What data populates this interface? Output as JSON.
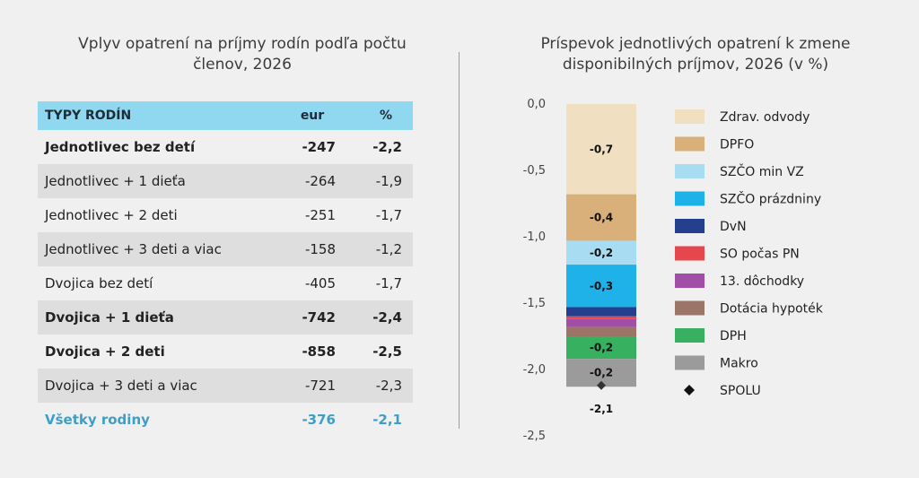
{
  "left_title": "Vplyv opatrení na príjmy rodín podľa počtu členov, 2026",
  "right_title": "Príspevok jednotlivých opatrení k zmene disponibilných príjmov, 2026 (v %)",
  "table": {
    "headers": [
      "TYPY RODÍN",
      "eur",
      "%"
    ],
    "rows": [
      {
        "label": "Jednotlivec bez detí",
        "eur": "-247",
        "pct": "-2,2",
        "bold": true
      },
      {
        "label": "Jednotlivec + 1 dieťa",
        "eur": "-264",
        "pct": "-1,9",
        "bold": false
      },
      {
        "label": "Jednotlivec + 2 deti",
        "eur": "-251",
        "pct": "-1,7",
        "bold": false
      },
      {
        "label": "Jednotlivec + 3 deti a viac",
        "eur": "-158",
        "pct": "-1,2",
        "bold": false
      },
      {
        "label": "Dvojica bez detí",
        "eur": "-405",
        "pct": "-1,7",
        "bold": false
      },
      {
        "label": "Dvojica + 1 dieťa",
        "eur": "-742",
        "pct": "-2,4",
        "bold": true
      },
      {
        "label": "Dvojica + 2 deti",
        "eur": "-858",
        "pct": "-2,5",
        "bold": true
      },
      {
        "label": "Dvojica + 3 deti a viac",
        "eur": "-721",
        "pct": "-2,3",
        "bold": false
      }
    ],
    "total": {
      "label": "Všetky rodiny",
      "eur": "-376",
      "pct": "-2,1"
    }
  },
  "chart_data": {
    "type": "bar",
    "stacked": true,
    "title": "Príspevok jednotlivých opatrení k zmene disponibilných príjmov, 2026 (v %)",
    "ylim": [
      -2.5,
      0
    ],
    "yticks": [
      "0,0",
      "-0,5",
      "-1,0",
      "-1,5",
      "-2,0",
      "-2,5"
    ],
    "ytick_values": [
      0,
      -0.5,
      -1.0,
      -1.5,
      -2.0,
      -2.5
    ],
    "series": [
      {
        "name": "Zdrav. odvody",
        "value": -0.68,
        "label": "-0,7",
        "color": "#f1dfc2"
      },
      {
        "name": "DPFO",
        "value": -0.35,
        "label": "-0,4",
        "color": "#d9b07a"
      },
      {
        "name": "SZČO min VZ",
        "value": -0.18,
        "label": "-0,2",
        "color": "#a8dcf2"
      },
      {
        "name": "SZČO prázdniny",
        "value": -0.32,
        "label": "-0,3",
        "color": "#1eb2e8"
      },
      {
        "name": "DvN",
        "value": -0.07,
        "label": "",
        "color": "#233f8e"
      },
      {
        "name": "SO počas PN",
        "value": -0.02,
        "label": "",
        "color": "#e5474d"
      },
      {
        "name": "13. dôchodky",
        "value": -0.06,
        "label": "",
        "color": "#a04ea6"
      },
      {
        "name": "Dotácia hypoték",
        "value": -0.07,
        "label": "",
        "color": "#9a7568"
      },
      {
        "name": "DPH",
        "value": -0.17,
        "label": "-0,2",
        "color": "#37b05f"
      },
      {
        "name": "Makro",
        "value": -0.21,
        "label": "-0,2",
        "color": "#9b9b9b"
      }
    ],
    "total": {
      "name": "SPOLU",
      "value": -2.12,
      "label": "-2,1",
      "color": "#333333"
    }
  }
}
